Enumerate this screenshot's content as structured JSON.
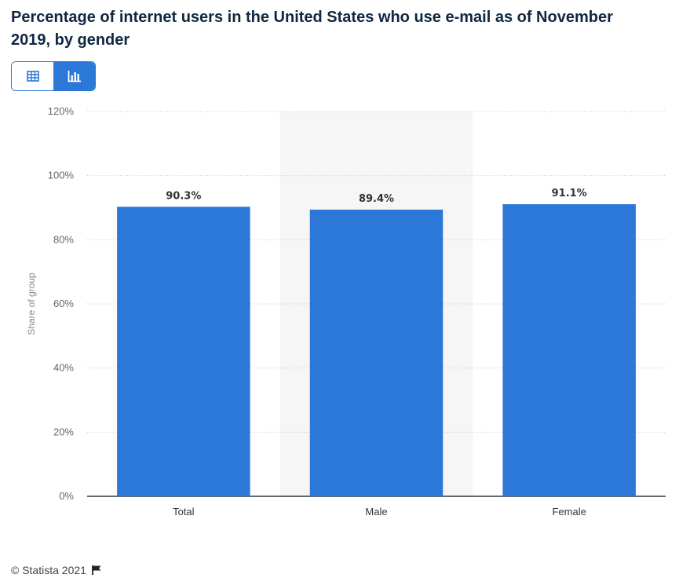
{
  "title": "Percentage of internet users in the United States who use e-mail as of November 2019, by gender",
  "toggle": {
    "table_icon": "table-icon",
    "chart_icon": "bar-chart-icon",
    "active": "chart"
  },
  "footer": {
    "credit": "© Statista 2021",
    "flag_icon": "flag-icon"
  },
  "colors": {
    "bar": "#2b78d8",
    "highlight_band": "#f6f6f6",
    "grid": "#cccccc",
    "axis": "#333333"
  },
  "chart_data": {
    "type": "bar",
    "categories": [
      "Total",
      "Male",
      "Female"
    ],
    "values": [
      90.3,
      89.4,
      91.1
    ],
    "data_labels": [
      "90.3%",
      "89.4%",
      "91.1%"
    ],
    "ylabel": "Share of group",
    "ylim": [
      0,
      120
    ],
    "yticks": [
      0,
      20,
      40,
      60,
      80,
      100,
      120
    ],
    "ytick_labels": [
      "0%",
      "20%",
      "40%",
      "60%",
      "80%",
      "100%",
      "120%"
    ],
    "highlighted_category": "Male",
    "grid": true
  }
}
